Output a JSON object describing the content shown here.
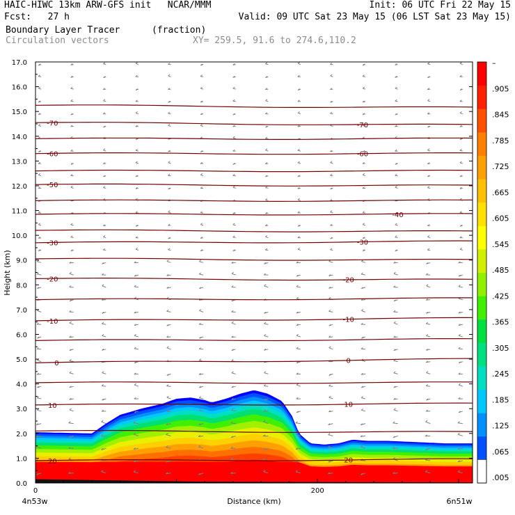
{
  "header": {
    "line1_left": "HAIC-HIWC 13km ARW-GFS init   NCAR/MMM",
    "line1_right": "Init: 06 UTC Fri 22 May 15",
    "line2_left": "Fcst:   27 h",
    "line2_right": "Valid: 09 UTC Sat 23 May 15 (06 LST Sat 23 May 15)",
    "field_name": "Boundary Layer Tracer",
    "field_unit": "(fraction)",
    "vector_name": "Circulation vectors",
    "xy_range": "XY= 259.5, 91.6 to 274.6,110.2"
  },
  "colors": {
    "contour": "#6e0000",
    "vector": "#808080",
    "colorbar": [
      "#ffffff",
      "#0000ff",
      "#0050ff",
      "#0090ff",
      "#00c8ff",
      "#00e0c0",
      "#00e080",
      "#00e040",
      "#40f000",
      "#90f000",
      "#d0f000",
      "#ffff00",
      "#ffe000",
      "#ffc000",
      "#ffa000",
      "#ff8000",
      "#ff5000",
      "#ff2000",
      "#ff0000"
    ]
  },
  "chart_data": {
    "type": "cross-section",
    "ylabel": "Height (km)",
    "xlabel": "Distance (km)",
    "x_left_label": "4n53w",
    "x_right_label": "6n51w",
    "ylim": [
      0,
      17
    ],
    "xlim": [
      0,
      310
    ],
    "y_ticks": [
      "0.0",
      "1.0",
      "2.0",
      "3.0",
      "4.0",
      "5.0",
      "6.0",
      "7.0",
      "8.0",
      "9.0",
      "10.0",
      "11.0",
      "12.0",
      "13.0",
      "14.0",
      "15.0",
      "16.0",
      "17.0"
    ],
    "x_ticks": [
      {
        "value": 0,
        "label": "0"
      },
      {
        "value": 200,
        "label": "200"
      }
    ],
    "colorbar_labels": [
      "–",
      ".905",
      ".845",
      ".785",
      ".725",
      ".665",
      ".605",
      ".545",
      ".485",
      ".425",
      ".365",
      ".305",
      ".245",
      ".185",
      ".125",
      ".065",
      ".005"
    ],
    "tracer_top_km": [
      [
        0,
        2.05
      ],
      [
        40,
        2.0
      ],
      [
        50,
        2.4
      ],
      [
        60,
        2.75
      ],
      [
        75,
        3.0
      ],
      [
        90,
        3.2
      ],
      [
        100,
        3.4
      ],
      [
        110,
        3.45
      ],
      [
        120,
        3.35
      ],
      [
        125,
        3.25
      ],
      [
        135,
        3.4
      ],
      [
        145,
        3.6
      ],
      [
        155,
        3.75
      ],
      [
        165,
        3.6
      ],
      [
        175,
        3.3
      ],
      [
        182,
        2.7
      ],
      [
        187,
        2.0
      ],
      [
        195,
        1.6
      ],
      [
        205,
        1.55
      ],
      [
        215,
        1.6
      ],
      [
        225,
        1.75
      ],
      [
        235,
        1.7
      ],
      [
        250,
        1.7
      ],
      [
        270,
        1.65
      ],
      [
        290,
        1.6
      ],
      [
        310,
        1.6
      ]
    ],
    "temperature_contours": [
      {
        "value": 20,
        "label": "20",
        "left": 0.9,
        "right": 0.95,
        "label_x": [
          12,
          222
        ]
      },
      {
        "value": 10,
        "label": "10",
        "left": 3.15,
        "right": 3.2,
        "label_x": [
          12,
          222
        ]
      },
      {
        "value": 0,
        "label": "0",
        "left": 4.85,
        "right": 5.0,
        "label_x": [
          15,
          222
        ]
      },
      {
        "value": -10,
        "label": "-10",
        "left": 6.55,
        "right": 6.65,
        "label_x": [
          12,
          222
        ]
      },
      {
        "value": -20,
        "label": "-20",
        "left": 8.25,
        "right": 8.2,
        "label_x": [
          12,
          222
        ]
      },
      {
        "value": -30,
        "label": "-30",
        "left": 9.7,
        "right": 9.75,
        "label_x": [
          12,
          232
        ]
      },
      {
        "value": -40,
        "label": "-40",
        "left": 10.85,
        "right": 10.85,
        "label_x": [
          257
        ]
      },
      {
        "value": -50,
        "label": "-50",
        "left": 12.05,
        "right": 12.0,
        "label_x": [
          12
        ]
      },
      {
        "value": -60,
        "label": "-60",
        "left": 13.3,
        "right": 13.3,
        "label_x": [
          12,
          232
        ]
      },
      {
        "value": -70,
        "label": "-70",
        "left": 14.55,
        "right": 14.45,
        "label_x": [
          12,
          232
        ]
      }
    ],
    "unlabeled_contour_levels_km": [
      [
        2.1,
        2.05
      ],
      [
        4.05,
        4.05
      ],
      [
        5.75,
        5.8
      ],
      [
        7.4,
        7.45
      ],
      [
        9.05,
        9.0
      ],
      [
        10.2,
        10.15
      ],
      [
        11.4,
        11.4
      ],
      [
        12.6,
        12.6
      ],
      [
        13.9,
        13.9
      ],
      [
        15.25,
        15.15
      ]
    ]
  }
}
